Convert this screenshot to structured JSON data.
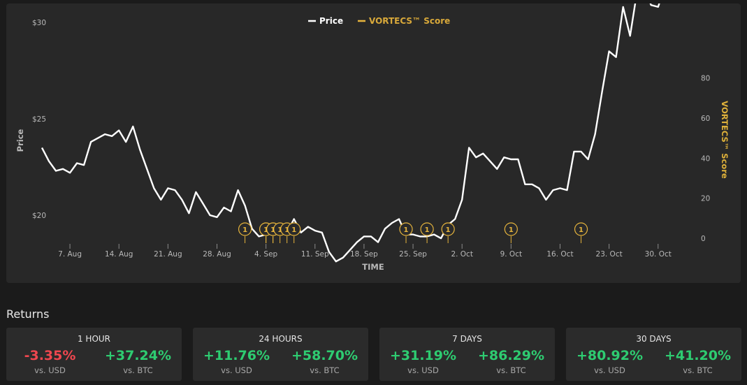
{
  "chart_data": {
    "type": "line",
    "legend": [
      {
        "name": "Price",
        "color": "#ffffff"
      },
      {
        "name": "VORTECS™ Score",
        "color": "#e6b43c"
      }
    ],
    "legend_placement": "top-center",
    "xlabel": "TIME",
    "ylabel_left": "Price",
    "ylabel_right": "VORTECS™ Score",
    "x_ticks": [
      "7. Aug",
      "14. Aug",
      "21. Aug",
      "28. Aug",
      "4. Sep",
      "11. Sep",
      "18. Sep",
      "25. Sep",
      "2. Oct",
      "9. Oct",
      "16. Oct",
      "23. Oct",
      "30. Oct"
    ],
    "y_left_ticks": [
      "$20",
      "$25",
      "$30"
    ],
    "y_left_range": [
      16,
      38
    ],
    "y_right_ticks": [
      "0",
      "20",
      "40",
      "60",
      "80"
    ],
    "y_right_range": [
      0,
      100
    ],
    "grid": false,
    "x_start": "2021-08-03",
    "series": [
      {
        "name": "Price",
        "values": [
          23.5,
          22.8,
          22.3,
          22.4,
          22.2,
          22.7,
          22.6,
          23.8,
          24.0,
          24.2,
          24.1,
          24.4,
          23.8,
          24.6,
          23.4,
          22.4,
          21.4,
          20.8,
          21.4,
          21.3,
          20.8,
          20.1,
          21.2,
          20.6,
          20.0,
          19.9,
          20.4,
          20.2,
          21.3,
          20.5,
          19.3,
          18.9,
          19.0,
          19.1,
          19.2,
          19.1,
          19.8,
          19.1,
          19.4,
          19.2,
          19.1,
          18.1,
          17.6,
          17.8,
          18.2,
          18.6,
          18.9,
          18.9,
          18.6,
          19.3,
          19.6,
          19.8,
          19.0,
          19.0,
          18.9,
          18.9,
          19.0,
          18.8,
          19.5,
          19.8,
          20.8,
          23.5,
          23.0,
          23.2,
          22.8,
          22.4,
          23.0,
          22.9,
          22.9,
          21.6,
          21.6,
          21.4,
          20.8,
          21.3,
          21.4,
          21.3,
          23.3,
          23.3,
          22.9,
          24.2,
          26.4,
          28.5,
          28.2,
          30.8,
          29.3,
          31.6,
          31.8,
          30.9,
          30.8,
          31.9,
          34.0,
          37.4
        ]
      }
    ],
    "score_markers": [
      {
        "date": "2021-09-01",
        "value": 1
      },
      {
        "date": "2021-09-04",
        "value": 1
      },
      {
        "date": "2021-09-04",
        "value": 1
      },
      {
        "date": "2021-09-05",
        "value": 1
      },
      {
        "date": "2021-09-05",
        "value": 1
      },
      {
        "date": "2021-09-06",
        "value": 1
      },
      {
        "date": "2021-09-07",
        "value": 1
      },
      {
        "date": "2021-09-08",
        "value": 1
      },
      {
        "date": "2021-09-24",
        "value": 1
      },
      {
        "date": "2021-09-27",
        "value": 1
      },
      {
        "date": "2021-09-30",
        "value": 1
      },
      {
        "date": "2021-10-09",
        "value": 1
      },
      {
        "date": "2021-10-19",
        "value": 1
      }
    ]
  },
  "returns": {
    "title": "Returns",
    "cards": [
      {
        "title": "1 HOUR",
        "usd": "-3.35%",
        "btc": "+37.24%",
        "usd_label": "vs. USD",
        "btc_label": "vs. BTC",
        "usd_status": "neg",
        "btc_status": "pos"
      },
      {
        "title": "24 HOURS",
        "usd": "+11.76%",
        "btc": "+58.70%",
        "usd_label": "vs. USD",
        "btc_label": "vs. BTC",
        "usd_status": "pos",
        "btc_status": "pos"
      },
      {
        "title": "7 DAYS",
        "usd": "+31.19%",
        "btc": "+86.29%",
        "usd_label": "vs. USD",
        "btc_label": "vs. BTC",
        "usd_status": "pos",
        "btc_status": "pos"
      },
      {
        "title": "30 DAYS",
        "usd": "+80.92%",
        "btc": "+41.20%",
        "usd_label": "vs. USD",
        "btc_label": "vs. BTC",
        "usd_status": "pos",
        "btc_status": "pos"
      }
    ]
  },
  "colors": {
    "positive": "#2ecc71",
    "negative": "#f0474f",
    "accent": "#e6b43c",
    "panel": "#282828",
    "background": "#1b1b1b"
  }
}
